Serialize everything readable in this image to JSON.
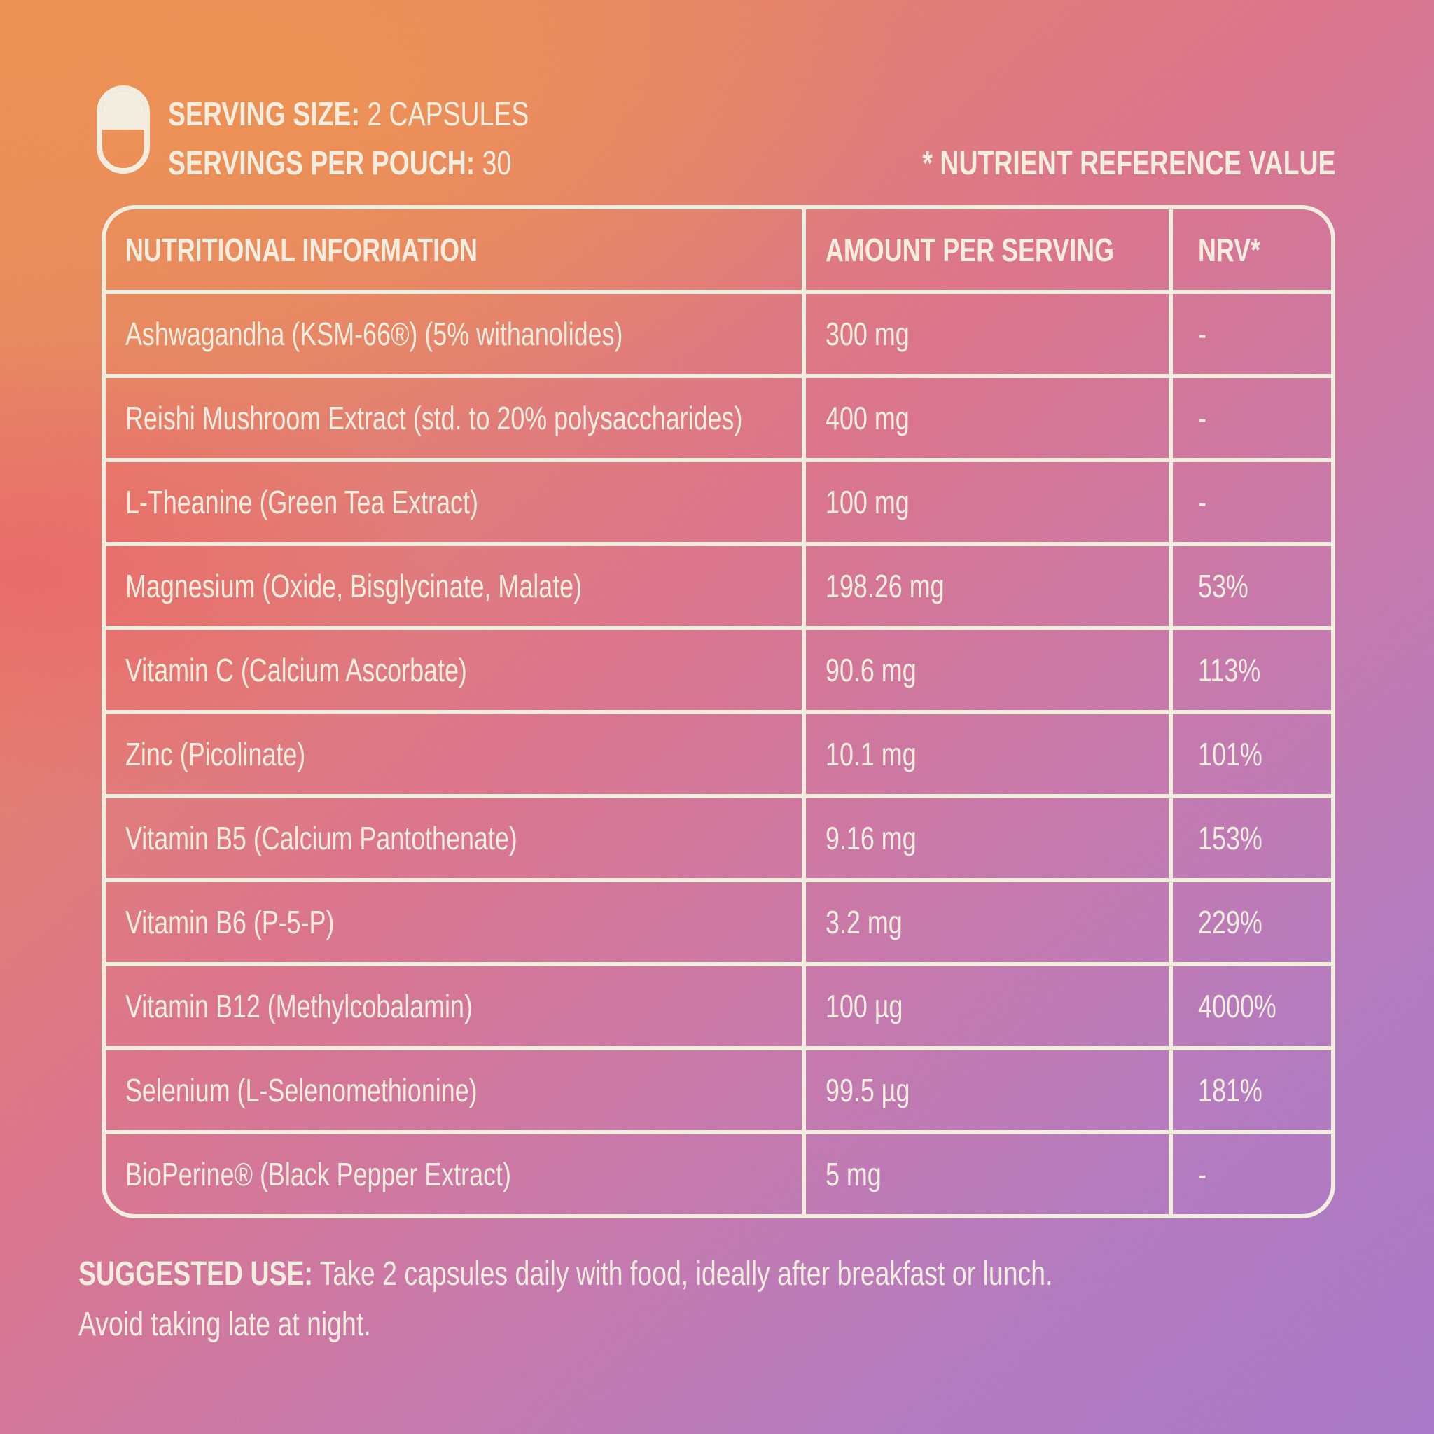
{
  "header": {
    "serving_size_label": "SERVING SIZE:",
    "serving_size_value": "2 CAPSULES",
    "servings_per_pouch_label": "SERVINGS PER POUCH:",
    "servings_per_pouch_value": "30",
    "nrv_note": "* NUTRIENT REFERENCE VALUE"
  },
  "table": {
    "columns": [
      "NUTRITIONAL INFORMATION",
      "AMOUNT PER SERVING",
      "NRV*"
    ],
    "rows": [
      {
        "name": "Ashwagandha (KSM-66®) (5% withanolides)",
        "amount": "300 mg",
        "nrv": "-"
      },
      {
        "name": "Reishi Mushroom Extract (std. to 20% polysaccharides)",
        "amount": "400 mg",
        "nrv": "-"
      },
      {
        "name": "L-Theanine (Green Tea Extract)",
        "amount": "100 mg",
        "nrv": "-"
      },
      {
        "name": "Magnesium (Oxide, Bisglycinate, Malate)",
        "amount": "198.26 mg",
        "nrv": "53%"
      },
      {
        "name": "Vitamin C (Calcium Ascorbate)",
        "amount": "90.6 mg",
        "nrv": "113%"
      },
      {
        "name": "Zinc (Picolinate)",
        "amount": "10.1 mg",
        "nrv": "101%"
      },
      {
        "name": "Vitamin B5 (Calcium Pantothenate)",
        "amount": "9.16 mg",
        "nrv": "153%"
      },
      {
        "name": "Vitamin B6 (P-5-P)",
        "amount": "3.2 mg",
        "nrv": "229%"
      },
      {
        "name": "Vitamin B12 (Methylcobalamin)",
        "amount": "100 µg",
        "nrv": "4000%"
      },
      {
        "name": "Selenium (L-Selenomethionine)",
        "amount": "99.5 µg",
        "nrv": "181%"
      },
      {
        "name": "BioPerine® (Black Pepper Extract)",
        "amount": "5 mg",
        "nrv": "-"
      }
    ]
  },
  "footer": {
    "suggested_use_label": "SUGGESTED USE:",
    "line1": "Take 2 capsules daily with food, ideally after breakfast or lunch.",
    "line2": "Avoid taking late at night."
  },
  "icons": {
    "capsule": "capsule-icon"
  },
  "colors": {
    "text_cream": "#F1ECDC",
    "gradient_orange": "#E98A4C",
    "gradient_red_pink": "#E55D64",
    "gradient_pink": "#D86E86",
    "gradient_purple": "#A471C4"
  }
}
